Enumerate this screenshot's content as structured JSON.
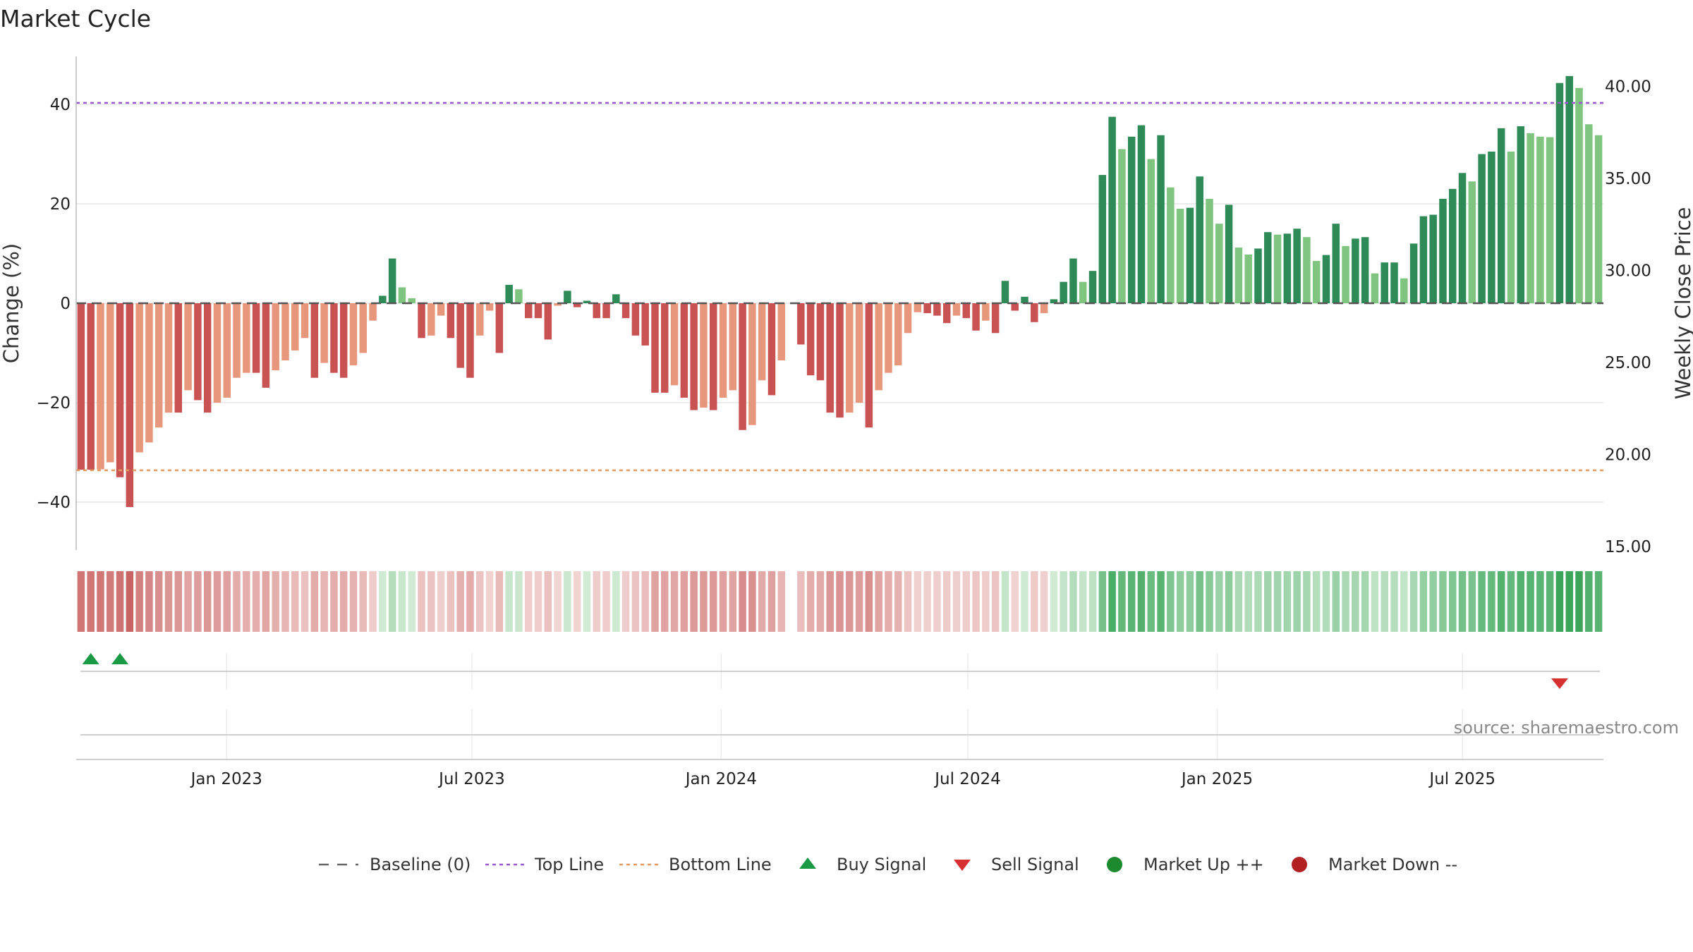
{
  "chart_data": {
    "type": "bar",
    "title": "Market Cycle",
    "ylabel": "Change (%)",
    "y2label": "Weekly Close Price",
    "ylim": [
      -50,
      50
    ],
    "y2lim": [
      15,
      41
    ],
    "yticks": [
      40,
      20,
      0,
      -20,
      -40
    ],
    "ytick_labels": [
      "40",
      "20",
      "0",
      "−20",
      "−40"
    ],
    "y2ticks": [
      40,
      35,
      30,
      25,
      20,
      15
    ],
    "y2tick_labels": [
      "40.00",
      "35.00",
      "30.00",
      "25.00",
      "20.00",
      "15.00"
    ],
    "xlim": [
      "2022-09-12",
      "2025-10-13"
    ],
    "xticks": [
      "2023-01-01",
      "2023-07-01",
      "2024-01-01",
      "2024-07-01",
      "2025-01-01",
      "2025-07-01"
    ],
    "xtick_labels": [
      "Jan 2023",
      "Jul 2023",
      "Jan 2024",
      "Jul 2024",
      "Jan 2025",
      "Jul 2025"
    ],
    "top_line": 40.3,
    "bottom_line": -33.6,
    "grid": true,
    "legend_placement": "bottom",
    "source": "source: sharemaestro.com",
    "first_week": "2022-09-12",
    "missing_week_index": 73,
    "values": [
      -33.5,
      -33.5,
      -33.4,
      -32.0,
      -35.0,
      -41.0,
      -30.0,
      -28.0,
      -25.0,
      -22.0,
      -22.0,
      -17.5,
      -19.5,
      -22.0,
      -20.0,
      -19.0,
      -15.0,
      -14.0,
      -14.0,
      -17.0,
      -13.5,
      -11.5,
      -9.5,
      -7.0,
      -15.0,
      -12.0,
      -14.0,
      -15.0,
      -12.5,
      -10.0,
      -3.5,
      1.5,
      9.0,
      3.2,
      1.0,
      -7.0,
      -6.5,
      -2.5,
      -7.0,
      -13.0,
      -15.0,
      -6.5,
      -1.5,
      -10.0,
      3.7,
      2.8,
      -3.0,
      -3.0,
      -7.3,
      -0.5,
      2.5,
      -0.8,
      0.5,
      -3.0,
      -3.0,
      1.8,
      -3.0,
      -6.5,
      -8.5,
      -18.0,
      -18.0,
      -16.5,
      -19.0,
      -21.5,
      -21.0,
      -21.5,
      -19.0,
      -17.5,
      -25.5,
      -24.5,
      -15.5,
      -18.5,
      -11.5,
      0,
      -8.3,
      -14.5,
      -15.5,
      -22.0,
      -23.0,
      -22.0,
      -20.0,
      -25.0,
      -17.5,
      -14.0,
      -12.5,
      -6.0,
      -1.8,
      -2.0,
      -2.5,
      -4.0,
      -2.5,
      -3.0,
      -5.5,
      -3.5,
      -6.0,
      4.5,
      -1.5,
      1.3,
      -3.8,
      -2.0,
      0.8,
      4.3,
      9.0,
      4.3,
      6.5,
      25.8,
      37.5,
      31.0,
      33.5,
      35.8,
      29.0,
      33.8,
      23.3,
      19.0,
      19.2,
      25.5,
      21.0,
      16.0,
      19.8,
      11.2,
      9.8,
      11.0,
      14.3,
      13.8,
      14.0,
      15.0,
      13.3,
      8.5,
      9.7,
      16.0,
      11.5,
      13.0,
      13.3,
      6.0,
      8.2,
      8.2,
      5.0,
      12.0,
      17.5,
      17.8,
      21.0,
      23.0,
      26.2,
      24.5,
      30.0,
      30.5,
      35.2,
      30.5,
      35.6,
      34.2,
      33.5,
      33.4,
      44.3,
      45.7,
      43.3,
      36.0,
      33.8
    ],
    "buy_signal_weeks": [
      1,
      4
    ],
    "sell_signal_weeks": [
      152
    ],
    "series": [
      {
        "name": "Baseline (0)",
        "color": "#666666"
      },
      {
        "name": "Top Line",
        "color": "#9b59d0"
      },
      {
        "name": "Bottom Line",
        "color": "#e39b5b"
      },
      {
        "name": "Buy Signal",
        "color": "#1a9a45"
      },
      {
        "name": "Sell Signal",
        "color": "#d63031"
      },
      {
        "name": "Market Up ++",
        "color": "#1e8a2e"
      },
      {
        "name": "Market Down --",
        "color": "#b22222"
      }
    ],
    "colors": {
      "neg_strong": "#c95353",
      "neg_light": "#e6977c",
      "pos_strong": "#2e8b57",
      "pos_light": "#7fc47f",
      "top_line": "#9b59d0",
      "bottom_line": "#e39b5b",
      "buy": "#1a9a45",
      "sell": "#d63031"
    }
  }
}
